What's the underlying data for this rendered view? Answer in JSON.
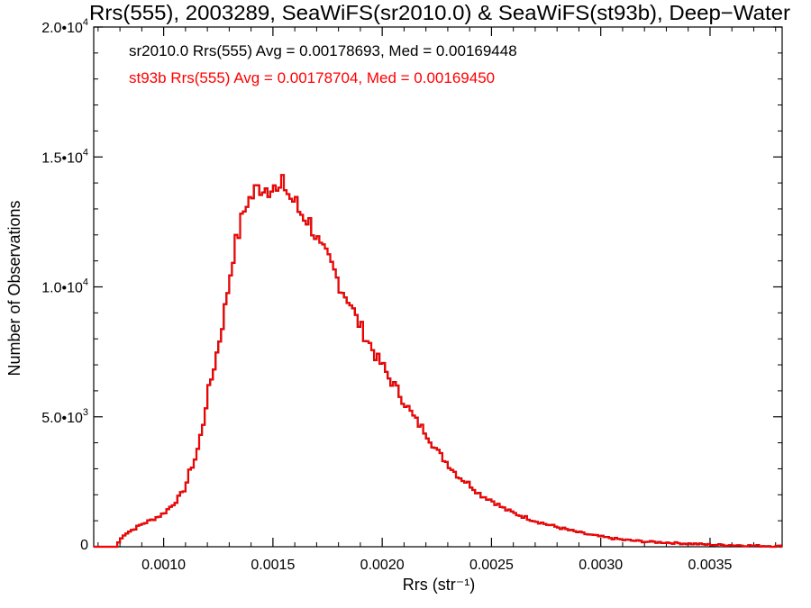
{
  "chart_data": {
    "type": "line",
    "title": "Rrs(555), 2003289, SeaWiFS(sr2010.0) & SeaWiFS(st93b), Deep−Water",
    "xlabel": "Rrs (str⁻¹)",
    "ylabel": "Number of Observations",
    "xlim": [
      0.00068,
      0.00383
    ],
    "ylim": [
      0,
      20000
    ],
    "x_ticks": [
      {
        "value": 0.001,
        "label": "0.0010"
      },
      {
        "value": 0.0015,
        "label": "0.0015"
      },
      {
        "value": 0.002,
        "label": "0.0020"
      },
      {
        "value": 0.0025,
        "label": "0.0025"
      },
      {
        "value": 0.003,
        "label": "0.0030"
      },
      {
        "value": 0.0035,
        "label": "0.0035"
      }
    ],
    "y_ticks": [
      {
        "value": 0,
        "mant": "0",
        "exp": ""
      },
      {
        "value": 5000,
        "mant": "5.0•10",
        "exp": "3"
      },
      {
        "value": 10000,
        "mant": "1.0•10",
        "exp": "4"
      },
      {
        "value": 15000,
        "mant": "1.5•10",
        "exp": "4"
      },
      {
        "value": 20000,
        "mant": "2.0•10",
        "exp": "4"
      }
    ],
    "annotations": [
      {
        "text": "sr2010.0 Rrs(555) Avg = 0.00178693, Med = 0.00169448",
        "color": "#000000"
      },
      {
        "text": "st93b Rrs(555) Avg = 0.00178704, Med = 0.00169450",
        "color": "#ff0000"
      }
    ],
    "series_color_1": "#000000",
    "series_color_2": "#ff0000",
    "histogram": {
      "x": [
        0.00078,
        0.0008,
        0.00082,
        0.00085,
        0.00088,
        0.0009,
        0.00095,
        0.001,
        0.00105,
        0.00108,
        0.0011,
        0.00112,
        0.00115,
        0.00118,
        0.0012,
        0.00122,
        0.00125,
        0.00128,
        0.0013,
        0.00132,
        0.00135,
        0.00138,
        0.0014,
        0.00142,
        0.00145,
        0.00148,
        0.0015,
        0.00152,
        0.00155,
        0.00158,
        0.0016,
        0.00162,
        0.00165,
        0.00168,
        0.0017,
        0.00172,
        0.00175,
        0.00178,
        0.0018,
        0.00183,
        0.00185,
        0.00188,
        0.0019,
        0.00193,
        0.00195,
        0.00198,
        0.002,
        0.00203,
        0.00205,
        0.0021,
        0.00215,
        0.0022,
        0.00225,
        0.0023,
        0.00235,
        0.0024,
        0.00245,
        0.0025,
        0.00255,
        0.0026,
        0.00265,
        0.0027,
        0.00275,
        0.0028,
        0.00285,
        0.0029,
        0.00295,
        0.003,
        0.0031,
        0.0032,
        0.0033,
        0.0034,
        0.0035,
        0.0036,
        0.0037,
        0.0038
      ],
      "y": [
        0,
        250,
        480,
        620,
        760,
        870,
        1050,
        1280,
        1700,
        2000,
        2300,
        2900,
        3500,
        4700,
        5800,
        6500,
        7700,
        9100,
        10200,
        11300,
        12300,
        13300,
        13400,
        13700,
        13900,
        13800,
        14200,
        13500,
        14000,
        13400,
        13300,
        12900,
        12700,
        12300,
        11900,
        11400,
        11100,
        10600,
        10200,
        9700,
        9500,
        8800,
        8500,
        8000,
        7700,
        7200,
        7000,
        6500,
        6300,
        5600,
        4900,
        4400,
        3700,
        3200,
        2700,
        2400,
        2000,
        1800,
        1500,
        1300,
        1150,
        1000,
        870,
        760,
        650,
        550,
        460,
        390,
        270,
        200,
        160,
        120,
        80,
        60,
        40,
        20
      ]
    }
  }
}
